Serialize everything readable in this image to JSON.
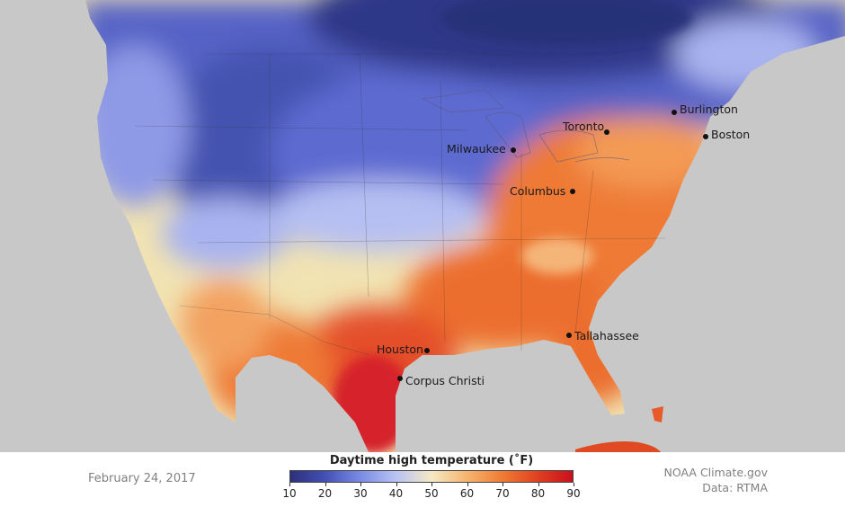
{
  "map": {
    "cities": [
      {
        "name": "Burlington"
      },
      {
        "name": "Toronto"
      },
      {
        "name": "Boston"
      },
      {
        "name": "Milwaukee"
      },
      {
        "name": "Columbus"
      },
      {
        "name": "Houston"
      },
      {
        "name": "Tallahassee"
      },
      {
        "name": "Corpus Christi"
      }
    ],
    "colors": {
      "background": "#c8c8c8",
      "cold": "#2b3a8c",
      "cool": "#8f9ce8",
      "neutral": "#f2e2b0",
      "warm": "#f0823a",
      "hot": "#d41a1a"
    }
  },
  "legend": {
    "title": "Daytime high temperature (˚F)",
    "ticks": [
      "10",
      "20",
      "30",
      "40",
      "50",
      "60",
      "70",
      "80",
      "90"
    ],
    "colors": [
      "#2d2f7a",
      "#4351b5",
      "#7a8ce6",
      "#b9c2f4",
      "#f5e9c4",
      "#f6b56f",
      "#ef7c34",
      "#e0411f",
      "#c8101e"
    ]
  },
  "footer": {
    "date": "February 24, 2017",
    "credit_line1": "NOAA Climate.gov",
    "credit_line2": "Data: RTMA"
  }
}
